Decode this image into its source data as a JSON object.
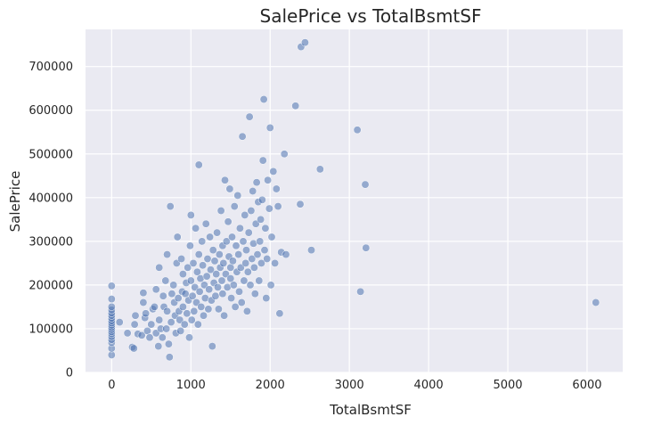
{
  "chart_data": {
    "type": "scatter",
    "title": "SalePrice vs TotalBsmtSF",
    "xlabel": "TotalBsmtSF",
    "ylabel": "SalePrice",
    "xlim": [
      -330,
      6450
    ],
    "ylim": [
      0,
      785000
    ],
    "xticks": [
      0,
      1000,
      2000,
      3000,
      4000,
      5000,
      6000
    ],
    "yticks": [
      0,
      100000,
      200000,
      300000,
      400000,
      500000,
      600000,
      700000
    ],
    "grid": true,
    "legend": "none",
    "colors": {
      "background": "#eaeaf2",
      "grid": "#ffffff",
      "point": "#4c72b0"
    },
    "series": [
      {
        "points": [
          [
            0,
            40000
          ],
          [
            0,
            55000
          ],
          [
            0,
            68000
          ],
          [
            0,
            75000
          ],
          [
            0,
            82000
          ],
          [
            0,
            88000
          ],
          [
            0,
            93000
          ],
          [
            0,
            98000
          ],
          [
            0,
            103000
          ],
          [
            0,
            108000
          ],
          [
            0,
            113000
          ],
          [
            0,
            118000
          ],
          [
            0,
            124000
          ],
          [
            0,
            130000
          ],
          [
            0,
            136000
          ],
          [
            0,
            143000
          ],
          [
            0,
            150000
          ],
          [
            0,
            168000
          ],
          [
            0,
            198000
          ],
          [
            100,
            115000
          ],
          [
            200,
            90000
          ],
          [
            260,
            58000
          ],
          [
            280,
            55000
          ],
          [
            290,
            110000
          ],
          [
            300,
            130000
          ],
          [
            330,
            88000
          ],
          [
            380,
            85000
          ],
          [
            400,
            160000
          ],
          [
            400,
            182000
          ],
          [
            420,
            125000
          ],
          [
            430,
            135000
          ],
          [
            450,
            95000
          ],
          [
            480,
            80000
          ],
          [
            500,
            110000
          ],
          [
            520,
            145000
          ],
          [
            540,
            150000
          ],
          [
            560,
            190000
          ],
          [
            560,
            90000
          ],
          [
            590,
            60000
          ],
          [
            600,
            120000
          ],
          [
            600,
            240000
          ],
          [
            620,
            100000
          ],
          [
            640,
            80000
          ],
          [
            650,
            175000
          ],
          [
            660,
            150000
          ],
          [
            680,
            210000
          ],
          [
            690,
            100000
          ],
          [
            700,
            270000
          ],
          [
            700,
            140000
          ],
          [
            720,
            65000
          ],
          [
            730,
            35000
          ],
          [
            740,
            380000
          ],
          [
            750,
            115000
          ],
          [
            760,
            180000
          ],
          [
            780,
            200000
          ],
          [
            790,
            160000
          ],
          [
            800,
            130000
          ],
          [
            810,
            90000
          ],
          [
            820,
            250000
          ],
          [
            830,
            310000
          ],
          [
            840,
            170000
          ],
          [
            850,
            140000
          ],
          [
            860,
            120000
          ],
          [
            870,
            95000
          ],
          [
            880,
            260000
          ],
          [
            890,
            185000
          ],
          [
            900,
            150000
          ],
          [
            900,
            225000
          ],
          [
            920,
            110000
          ],
          [
            930,
            180000
          ],
          [
            940,
            205000
          ],
          [
            950,
            135000
          ],
          [
            960,
            240000
          ],
          [
            970,
            165000
          ],
          [
            980,
            80000
          ],
          [
            990,
            290000
          ],
          [
            1000,
            210000
          ],
          [
            1000,
            360000
          ],
          [
            1010,
            120000
          ],
          [
            1020,
            175000
          ],
          [
            1030,
            250000
          ],
          [
            1040,
            140000
          ],
          [
            1050,
            195000
          ],
          [
            1060,
            330000
          ],
          [
            1070,
            160000
          ],
          [
            1080,
            230000
          ],
          [
            1090,
            110000
          ],
          [
            1100,
            270000
          ],
          [
            1100,
            475000
          ],
          [
            1110,
            185000
          ],
          [
            1120,
            215000
          ],
          [
            1130,
            150000
          ],
          [
            1140,
            300000
          ],
          [
            1150,
            245000
          ],
          [
            1160,
            130000
          ],
          [
            1170,
            200000
          ],
          [
            1180,
            170000
          ],
          [
            1190,
            340000
          ],
          [
            1200,
            220000
          ],
          [
            1210,
            260000
          ],
          [
            1220,
            145000
          ],
          [
            1230,
            190000
          ],
          [
            1240,
            310000
          ],
          [
            1250,
            235000
          ],
          [
            1260,
            165000
          ],
          [
            1270,
            60000
          ],
          [
            1280,
            280000
          ],
          [
            1290,
            205000
          ],
          [
            1300,
            255000
          ],
          [
            1310,
            175000
          ],
          [
            1320,
            225000
          ],
          [
            1330,
            320000
          ],
          [
            1340,
            195000
          ],
          [
            1350,
            145000
          ],
          [
            1360,
            270000
          ],
          [
            1370,
            240000
          ],
          [
            1380,
            370000
          ],
          [
            1390,
            210000
          ],
          [
            1400,
            290000
          ],
          [
            1400,
            180000
          ],
          [
            1410,
            250000
          ],
          [
            1420,
            130000
          ],
          [
            1430,
            440000
          ],
          [
            1440,
            225000
          ],
          [
            1450,
            300000
          ],
          [
            1460,
            195000
          ],
          [
            1470,
            345000
          ],
          [
            1480,
            265000
          ],
          [
            1490,
            420000
          ],
          [
            1500,
            215000
          ],
          [
            1500,
            240000
          ],
          [
            1510,
            170000
          ],
          [
            1520,
            310000
          ],
          [
            1530,
            255000
          ],
          [
            1540,
            200000
          ],
          [
            1550,
            380000
          ],
          [
            1560,
            150000
          ],
          [
            1570,
            290000
          ],
          [
            1580,
            230000
          ],
          [
            1590,
            405000
          ],
          [
            1600,
            270000
          ],
          [
            1610,
            185000
          ],
          [
            1620,
            330000
          ],
          [
            1630,
            240000
          ],
          [
            1640,
            160000
          ],
          [
            1650,
            540000
          ],
          [
            1660,
            300000
          ],
          [
            1670,
            210000
          ],
          [
            1680,
            360000
          ],
          [
            1690,
            250000
          ],
          [
            1700,
            280000
          ],
          [
            1710,
            140000
          ],
          [
            1720,
            230000
          ],
          [
            1730,
            320000
          ],
          [
            1740,
            585000
          ],
          [
            1750,
            200000
          ],
          [
            1760,
            370000
          ],
          [
            1770,
            260000
          ],
          [
            1780,
            415000
          ],
          [
            1790,
            295000
          ],
          [
            1800,
            240000
          ],
          [
            1810,
            180000
          ],
          [
            1820,
            340000
          ],
          [
            1830,
            435000
          ],
          [
            1840,
            270000
          ],
          [
            1850,
            390000
          ],
          [
            1860,
            210000
          ],
          [
            1870,
            300000
          ],
          [
            1880,
            350000
          ],
          [
            1890,
            250000
          ],
          [
            1900,
            395000
          ],
          [
            1910,
            485000
          ],
          [
            1920,
            625000
          ],
          [
            1930,
            280000
          ],
          [
            1940,
            330000
          ],
          [
            1950,
            170000
          ],
          [
            1960,
            260000
          ],
          [
            1970,
            440000
          ],
          [
            1990,
            375000
          ],
          [
            2000,
            560000
          ],
          [
            2010,
            200000
          ],
          [
            2020,
            310000
          ],
          [
            2040,
            460000
          ],
          [
            2060,
            250000
          ],
          [
            2080,
            420000
          ],
          [
            2100,
            380000
          ],
          [
            2120,
            135000
          ],
          [
            2140,
            275000
          ],
          [
            2180,
            500000
          ],
          [
            2200,
            270000
          ],
          [
            2320,
            610000
          ],
          [
            2380,
            385000
          ],
          [
            2390,
            745000
          ],
          [
            2440,
            755000
          ],
          [
            2520,
            280000
          ],
          [
            2630,
            465000
          ],
          [
            3100,
            555000
          ],
          [
            3140,
            185000
          ],
          [
            3200,
            430000
          ],
          [
            3210,
            285000
          ],
          [
            6110,
            160000
          ]
        ]
      }
    ]
  }
}
